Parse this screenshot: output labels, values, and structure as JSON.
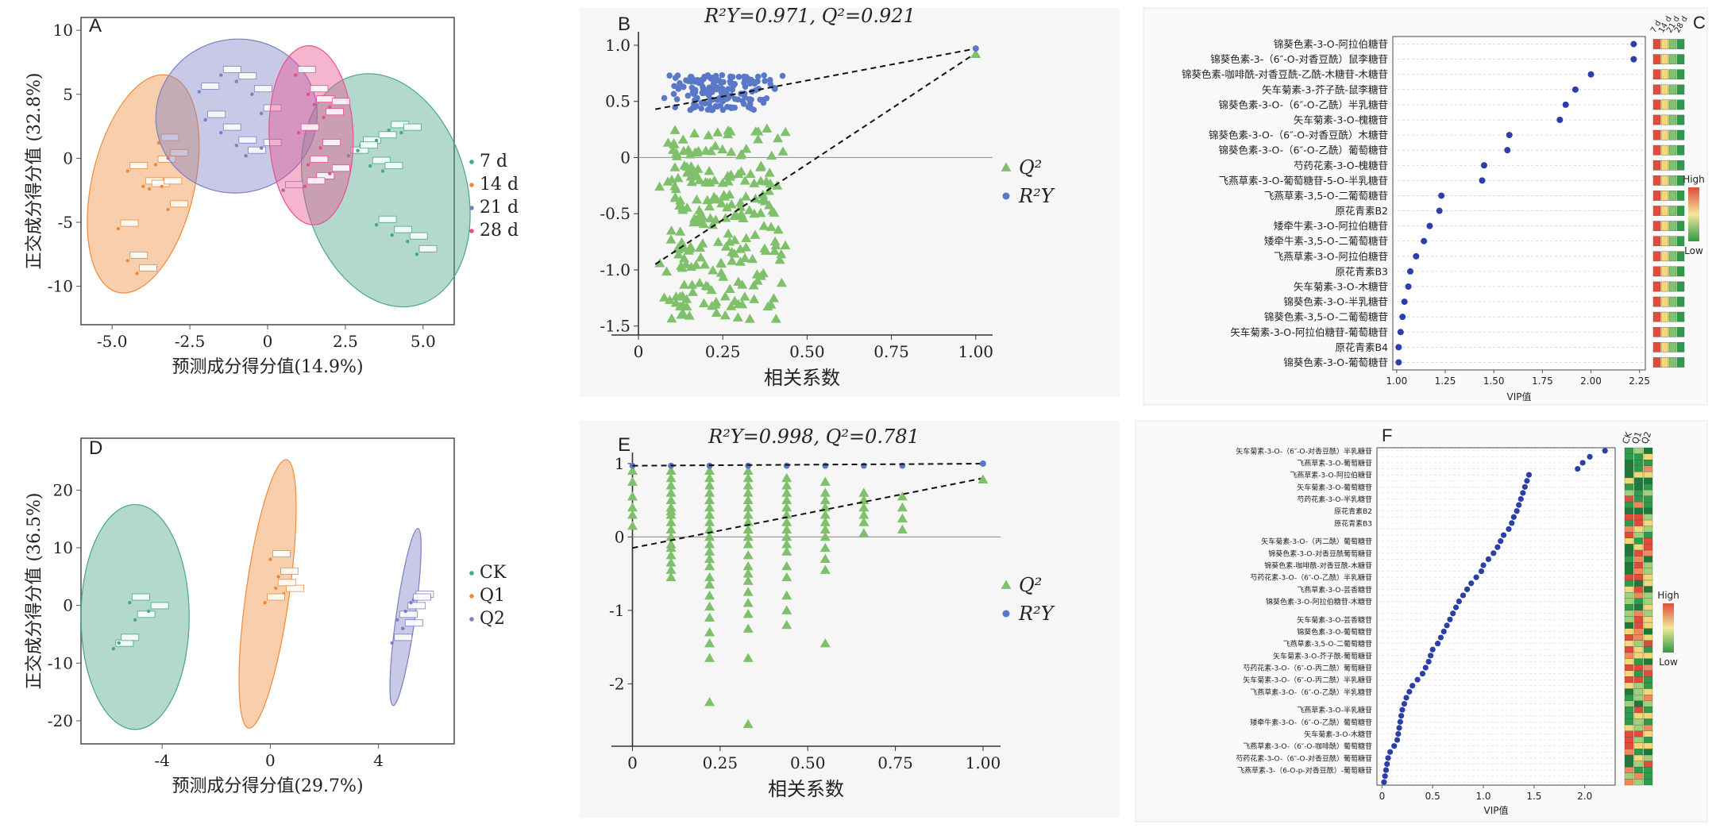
{
  "figure": {
    "background": "#ffffff"
  },
  "colors": {
    "g7": "#4aa58a",
    "g14": "#f08a3a",
    "g21": "#7b7fc4",
    "g28": "#ea4f8c",
    "ck": "#4aa58a",
    "q1": "#f08a3a",
    "q2": "#7b7fc4",
    "q2tri": "#7fc06a",
    "r2y": "#5a78c8",
    "vipdot": "#2a3fa8"
  },
  "chart_data": [
    {
      "panel": "A",
      "type": "scatter",
      "subtype": "opls-da-score",
      "xlabel": "预测成分得分值(14.9%)",
      "ylabel": "正交成分得分值 (32.8%)",
      "xlim": [
        -6.0,
        6.0
      ],
      "ylim": [
        -13,
        11
      ],
      "xticks": [
        -5.0,
        -2.5,
        0,
        2.5,
        5.0
      ],
      "xticklabels": [
        "-5.0",
        "-2.5",
        "0",
        "2.5",
        "5.0"
      ],
      "yticks": [
        10,
        5,
        0,
        -5,
        -10
      ],
      "yticklabels": [
        "10",
        "5",
        "0",
        "-5",
        "-10"
      ],
      "legend": [
        "7 d",
        "14 d",
        "21 d",
        "28 d"
      ],
      "series": [
        {
          "name": "7 d",
          "color": "g7",
          "points": [
            [
              2.6,
              0.2
            ],
            [
              3.0,
              1.0
            ],
            [
              3.5,
              1.4
            ],
            [
              3.9,
              2.2
            ],
            [
              4.3,
              2.0
            ],
            [
              3.3,
              -0.6
            ],
            [
              3.7,
              -1.0
            ],
            [
              3.5,
              -5.2
            ],
            [
              4.0,
              -6.0
            ],
            [
              4.5,
              -6.5
            ],
            [
              4.8,
              -7.5
            ],
            [
              2.9,
              0.6
            ]
          ],
          "ellipse": {
            "cx": 3.8,
            "cy": -2.5,
            "rx": 2.6,
            "ry": 9.3,
            "angle": -16
          }
        },
        {
          "name": "14 d",
          "color": "g14",
          "points": [
            [
              -4.8,
              -5.5
            ],
            [
              -4.5,
              -8.0
            ],
            [
              -4.2,
              -9.0
            ],
            [
              -4.5,
              -1.0
            ],
            [
              -4.0,
              -2.2
            ],
            [
              -3.8,
              -2.4
            ],
            [
              -3.4,
              -2.2
            ],
            [
              -3.6,
              -0.5
            ],
            [
              -3.2,
              0.0
            ],
            [
              -3.2,
              -4.0
            ],
            [
              -3.5,
              1.2
            ]
          ],
          "ellipse": {
            "cx": -4.0,
            "cy": -2.0,
            "rx": 1.65,
            "ry": 8.7,
            "angle": 13
          }
        },
        {
          "name": "21 d",
          "color": "g21",
          "points": [
            [
              -2.2,
              5.2
            ],
            [
              -1.5,
              6.5
            ],
            [
              -1.0,
              6.0
            ],
            [
              -0.5,
              5.0
            ],
            [
              -0.2,
              3.5
            ],
            [
              -2.0,
              3.0
            ],
            [
              -1.5,
              2.0
            ],
            [
              -1.0,
              1.0
            ],
            [
              -0.7,
              0.2
            ],
            [
              -0.2,
              0.8
            ],
            [
              0.5,
              -2.5
            ]
          ],
          "ellipse": {
            "cx": -1.0,
            "cy": 3.3,
            "rx": 2.6,
            "ry": 6.0,
            "angle": -12
          }
        },
        {
          "name": "28 d",
          "color": "g28",
          "points": [
            [
              0.9,
              6.5
            ],
            [
              1.3,
              5.0
            ],
            [
              1.5,
              4.2
            ],
            [
              1.8,
              3.2
            ],
            [
              1.7,
              0.8
            ],
            [
              1.0,
              2.0
            ],
            [
              1.3,
              -0.5
            ],
            [
              1.5,
              -1.8
            ],
            [
              2.0,
              -1.2
            ],
            [
              1.2,
              -2.2
            ],
            [
              2.0,
              4.0
            ]
          ],
          "ellipse": {
            "cx": 1.4,
            "cy": 1.8,
            "rx": 1.35,
            "ry": 7.0,
            "angle": -2
          }
        }
      ]
    },
    {
      "panel": "B",
      "type": "scatter",
      "subtype": "permutation-test",
      "title": "R²Y=0.971, Q²=0.921",
      "xlabel": "相关系数",
      "ylabel": "",
      "xlim": [
        -0.08,
        1.05
      ],
      "ylim": [
        -1.58,
        1.12
      ],
      "xticks": [
        0,
        0.25,
        0.5,
        0.75,
        1.0
      ],
      "xticklabels": [
        "0",
        "0.25",
        "0.50",
        "0.75",
        "1.00"
      ],
      "yticks": [
        1.0,
        0.5,
        0,
        -0.5,
        -1.0,
        -1.5
      ],
      "yticklabels": [
        "1.0",
        "0.5",
        "0",
        "-0.5",
        "-1.0",
        "-1.5"
      ],
      "legend": [
        "Q²",
        "R²Y"
      ],
      "r2y_point": [
        1.0,
        0.971
      ],
      "q2_point": [
        1.0,
        0.921
      ],
      "r2y_line": [
        [
          0.05,
          0.43
        ],
        [
          1.0,
          0.97
        ]
      ],
      "q2_line": [
        [
          0.05,
          -0.95
        ],
        [
          1.0,
          0.93
        ]
      ],
      "r2y_cloud": {
        "xmin": 0.05,
        "xmax": 0.45,
        "ymin": 0.42,
        "ymax": 0.74,
        "n": 160,
        "seed": 11
      },
      "q2_cloud": {
        "xmin": 0.05,
        "xmax": 0.5,
        "ymin": -1.45,
        "ymax": 0.3,
        "n": 230,
        "seed": 23
      }
    },
    {
      "panel": "C",
      "type": "scatter",
      "subtype": "vip-dotplot",
      "xlabel": "VIP值",
      "xlim": [
        0.98,
        2.28
      ],
      "xticks": [
        1.0,
        1.25,
        1.5,
        1.75,
        2.0,
        2.25
      ],
      "xticklabels": [
        "1.00",
        "1.25",
        "1.50",
        "1.75",
        "2.00",
        "2.25"
      ],
      "heat_headers": [
        "7 d",
        "14 d",
        "21 d",
        "28 d"
      ],
      "colorbar": {
        "high": "High",
        "low": "Low"
      },
      "items": [
        {
          "label": "锦葵色素-3-O-阿拉伯糖苷",
          "vip": 2.22,
          "heat": [
            "#e14b3a",
            "#f2d87a",
            "#7ec36e",
            "#2f9a4a"
          ]
        },
        {
          "label": "锦葵色素-3-（6″-O-对香豆酰）鼠李糖苷",
          "vip": 2.22,
          "heat": [
            "#e14b3a",
            "#f2d87a",
            "#7ec36e",
            "#2f9a4a"
          ]
        },
        {
          "label": "锦葵色素-咖啡酰-对香豆酰-乙酰-木糖苷-木糖苷",
          "vip": 2.0,
          "heat": [
            "#e14b3a",
            "#f2d87a",
            "#7ec36e",
            "#2f9a4a"
          ]
        },
        {
          "label": "矢车菊素-3-芥子酰-鼠李糖苷",
          "vip": 1.92,
          "heat": [
            "#e14b3a",
            "#f2d87a",
            "#7ec36e",
            "#2f9a4a"
          ]
        },
        {
          "label": "锦葵色素-3-O-（6″-O-乙酰）半乳糖苷",
          "vip": 1.87,
          "heat": [
            "#e14b3a",
            "#f2d87a",
            "#7ec36e",
            "#2f9a4a"
          ]
        },
        {
          "label": "矢车菊素-3-O-槐糖苷",
          "vip": 1.84,
          "heat": [
            "#e14b3a",
            "#f2d87a",
            "#7ec36e",
            "#2f9a4a"
          ]
        },
        {
          "label": "锦葵色素-3-O-（6″-O-对香豆酰）木糖苷",
          "vip": 1.58,
          "heat": [
            "#e14b3a",
            "#f2d87a",
            "#7ec36e",
            "#2f9a4a"
          ]
        },
        {
          "label": "锦葵色素-3-O-（6″-O-乙酰）葡萄糖苷",
          "vip": 1.57,
          "heat": [
            "#e14b3a",
            "#f2d87a",
            "#7ec36e",
            "#2f9a4a"
          ]
        },
        {
          "label": "芍药花素-3-O-槐糖苷",
          "vip": 1.45,
          "heat": [
            "#e14b3a",
            "#f2d87a",
            "#7ec36e",
            "#2f9a4a"
          ]
        },
        {
          "label": "飞燕草素-3-O-葡萄糖苷-5-O-半乳糖苷",
          "vip": 1.44,
          "heat": [
            "#e14b3a",
            "#f2d87a",
            "#7ec36e",
            "#2f9a4a"
          ]
        },
        {
          "label": "飞燕草素-3,5-O-二葡萄糖苷",
          "vip": 1.23,
          "heat": [
            "#e14b3a",
            "#f2d87a",
            "#7ec36e",
            "#2f9a4a"
          ]
        },
        {
          "label": "原花青素B2",
          "vip": 1.22,
          "heat": [
            "#e14b3a",
            "#f2d87a",
            "#7ec36e",
            "#2f9a4a"
          ]
        },
        {
          "label": "矮牵牛素-3-O-阿拉伯糖苷",
          "vip": 1.17,
          "heat": [
            "#e14b3a",
            "#f2d87a",
            "#7ec36e",
            "#2f9a4a"
          ]
        },
        {
          "label": "矮牵牛素-3,5-O-二葡萄糖苷",
          "vip": 1.14,
          "heat": [
            "#e14b3a",
            "#f2d87a",
            "#7ec36e",
            "#2f9a4a"
          ]
        },
        {
          "label": "飞燕草素-3-O-阿拉伯糖苷",
          "vip": 1.1,
          "heat": [
            "#e14b3a",
            "#f2d87a",
            "#7ec36e",
            "#2f9a4a"
          ]
        },
        {
          "label": "原花青素B3",
          "vip": 1.07,
          "heat": [
            "#e14b3a",
            "#f2d87a",
            "#7ec36e",
            "#2f9a4a"
          ]
        },
        {
          "label": "矢车菊素-3-O-木糖苷",
          "vip": 1.06,
          "heat": [
            "#e14b3a",
            "#f2d87a",
            "#7ec36e",
            "#2f9a4a"
          ]
        },
        {
          "label": "锦葵色素-3-O-半乳糖苷",
          "vip": 1.04,
          "heat": [
            "#e14b3a",
            "#f2d87a",
            "#7ec36e",
            "#2f9a4a"
          ]
        },
        {
          "label": "锦葵色素-3,5-O-二葡萄糖苷",
          "vip": 1.03,
          "heat": [
            "#e14b3a",
            "#f2d87a",
            "#7ec36e",
            "#2f9a4a"
          ]
        },
        {
          "label": "矢车菊素-3-O-阿拉伯糖苷-葡萄糖苷",
          "vip": 1.02,
          "heat": [
            "#e14b3a",
            "#f2d87a",
            "#7ec36e",
            "#2f9a4a"
          ]
        },
        {
          "label": "原花青素B4",
          "vip": 1.01,
          "heat": [
            "#e14b3a",
            "#f2d87a",
            "#7ec36e",
            "#2f9a4a"
          ]
        },
        {
          "label": "锦葵色素-3-O-葡萄糖苷",
          "vip": 1.01,
          "heat": [
            "#e14b3a",
            "#f2d87a",
            "#7ec36e",
            "#2f9a4a"
          ]
        }
      ]
    },
    {
      "panel": "D",
      "type": "scatter",
      "subtype": "opls-da-score",
      "xlabel": "预测成分得分值(29.7%)",
      "ylabel": "正交成分得分值 (36.5%)",
      "xlim": [
        -7.0,
        6.8
      ],
      "ylim": [
        -24,
        29
      ],
      "xticks": [
        -4,
        0,
        4
      ],
      "xticklabels": [
        "-4",
        "0",
        "4"
      ],
      "yticks": [
        20,
        10,
        0,
        -10,
        -20
      ],
      "yticklabels": [
        "20",
        "10",
        "0",
        "-10",
        "-20"
      ],
      "legend": [
        "CK",
        "Q1",
        "Q2"
      ],
      "series": [
        {
          "name": "CK",
          "color": "ck",
          "points": [
            [
              -5.2,
              0.5
            ],
            [
              -5.0,
              -2.5
            ],
            [
              -4.5,
              -1.0
            ],
            [
              -5.8,
              -7.5
            ],
            [
              -5.6,
              -6.5
            ]
          ],
          "ellipse": {
            "cx": -5.0,
            "cy": -2.0,
            "rx": 2.0,
            "ry": 19.5,
            "angle": 0
          }
        },
        {
          "name": "Q1",
          "color": "q1",
          "points": [
            [
              0.0,
              8.0
            ],
            [
              0.3,
              5.0
            ],
            [
              0.5,
              2.0
            ],
            [
              -0.2,
              0.5
            ],
            [
              0.2,
              3.0
            ]
          ],
          "ellipse": {
            "cx": -0.1,
            "cy": 2.0,
            "rx": 0.8,
            "ry": 23.5,
            "angle": 8
          }
        },
        {
          "name": "Q2",
          "color": "q2",
          "points": [
            [
              4.7,
              -2.5
            ],
            [
              5.0,
              -1.0
            ],
            [
              5.3,
              1.0
            ],
            [
              4.9,
              -4.0
            ],
            [
              4.5,
              -6.5
            ],
            [
              5.2,
              0.5
            ]
          ],
          "ellipse": {
            "cx": 5.0,
            "cy": -2.0,
            "rx": 0.35,
            "ry": 15.5,
            "angle": 8
          }
        }
      ]
    },
    {
      "panel": "E",
      "type": "scatter",
      "subtype": "permutation-test",
      "title": "R²Y=0.998, Q²=0.781",
      "xlabel": "相关系数",
      "ylabel": "",
      "xlim": [
        -0.06,
        1.05
      ],
      "ylim": [
        -2.85,
        1.15
      ],
      "xticks": [
        0,
        0.25,
        0.5,
        0.75,
        1.0
      ],
      "xticklabels": [
        "0",
        "0.25",
        "0.50",
        "0.75",
        "1.00"
      ],
      "yticks": [
        1,
        0,
        -1,
        -2
      ],
      "yticklabels": [
        "1",
        "0",
        "-1",
        "-2"
      ],
      "legend": [
        "Q²",
        "R²Y"
      ],
      "r2y_point": [
        1.0,
        0.998
      ],
      "q2_point": [
        1.0,
        0.781
      ],
      "r2y_line": [
        [
          0,
          0.97
        ],
        [
          1.0,
          0.998
        ]
      ],
      "q2_line": [
        [
          0,
          -0.15
        ],
        [
          1.0,
          0.8
        ]
      ],
      "columns": [
        {
          "x": 0.0,
          "q2": [
            0.9,
            0.75,
            0.55,
            0.4,
            0.3,
            0.15
          ],
          "n_r2": 1
        },
        {
          "x": 0.11,
          "q2": [
            0.9,
            0.8,
            0.7,
            0.6,
            0.5,
            0.4,
            0.35,
            0.3,
            0.2,
            0.1,
            0.0,
            -0.1,
            -0.15,
            -0.25,
            -0.35,
            -0.45,
            -0.55
          ],
          "n_r2": 2
        },
        {
          "x": 0.22,
          "q2": [
            0.9,
            0.8,
            0.7,
            0.6,
            0.5,
            0.4,
            0.3,
            0.2,
            0.1,
            0.0,
            -0.1,
            -0.2,
            -0.3,
            -0.4,
            -0.55,
            -0.65,
            -0.8,
            -0.95,
            -1.1,
            -1.3,
            -1.45,
            -1.65,
            -2.25
          ],
          "n_r2": 3
        },
        {
          "x": 0.33,
          "q2": [
            0.9,
            0.8,
            0.7,
            0.6,
            0.5,
            0.4,
            0.3,
            0.2,
            0.1,
            0.0,
            -0.1,
            -0.25,
            -0.4,
            -0.5,
            -0.6,
            -0.75,
            -0.9,
            -1.05,
            -1.25,
            -1.65,
            -2.55
          ],
          "n_r2": 3
        },
        {
          "x": 0.44,
          "q2": [
            0.8,
            0.7,
            0.6,
            0.5,
            0.4,
            0.3,
            0.2,
            0.1,
            0.0,
            -0.1,
            -0.2,
            -0.4,
            -0.55,
            -0.8,
            -1.0,
            -1.2
          ],
          "n_r2": 2
        },
        {
          "x": 0.55,
          "q2": [
            0.75,
            0.6,
            0.5,
            0.4,
            0.3,
            0.2,
            0.1,
            0.0,
            -0.15,
            -0.3,
            -0.45,
            -1.45
          ],
          "n_r2": 2
        },
        {
          "x": 0.66,
          "q2": [
            0.6,
            0.5,
            0.4,
            0.3,
            0.2,
            0.05
          ],
          "n_r2": 1
        },
        {
          "x": 0.77,
          "q2": [
            0.55,
            0.4,
            0.25,
            0.1
          ],
          "n_r2": 1
        }
      ]
    },
    {
      "panel": "F",
      "type": "scatter",
      "subtype": "vip-dotplot",
      "xlabel": "VIP值",
      "xlim": [
        -0.05,
        2.3
      ],
      "xticks": [
        0,
        0.5,
        1.0,
        1.5,
        2.0
      ],
      "xticklabels": [
        "0",
        "0.5",
        "1.0",
        "1.5",
        "2.0"
      ],
      "heat_headers": [
        "CK",
        "Q1",
        "Q2"
      ],
      "colorbar": {
        "high": "High",
        "low": "Low"
      },
      "n_rows": 56,
      "row_labels": [
        "矢车菊素-3-O-（6″-O-对香豆酰）半乳糖苷",
        "飞燕草素-3-O-葡萄糖苷",
        "飞燕草素-3-O-阿拉伯糖苷",
        "矢车菊素-3-O-葡萄糖苷",
        "芍药花素-3-O-半乳糖苷",
        "原花青素B2",
        "原花青素B3",
        "矢车菊素-3-O-（丙二酰）葡萄糖苷",
        "锦葵色素-3-O-对香豆酰葡萄糖苷",
        "锦葵色素-咖啡酰-对香豆酰-木糖苷",
        "芍药花素-3-O-（6″-O-乙酰）半乳糖苷",
        "飞燕草素-3-O-芸香糖苷",
        "锦葵色素-3-O-阿拉伯糖苷-木糖苷",
        "矢车菊素-3-O-芸香糖苷",
        "锦葵色素-3-O-葡萄糖苷",
        "飞燕草素-3,5-O-二葡萄糖苷",
        "矢车菊素-3-O-芥子酰-葡萄糖苷",
        "芍药花素-3-O-（6″-O-丙二酰）葡萄糖苷",
        "矢车菊素-3-O-（6″-O-丙二酰）半乳糖苷",
        "飞燕草素-3-O-（6″-O-乙酰）半乳糖苷",
        "飞燕草素-3-O-半乳糖苷",
        "矮牵牛素-3-O-（6″-O-乙酰）葡萄糖苷",
        "矢车菊素-3-O-木糖苷",
        "飞燕草素-3-O-（6″-O-咖啡酰）葡萄糖苷",
        "芍药花素-3-O-（6″-O-对香豆酰）葡萄糖苷",
        "飞燕草素-3-（6-O-p-对香豆酰）-葡萄糖苷"
      ],
      "vips": [
        2.2,
        2.05,
        1.98,
        1.93,
        1.45,
        1.43,
        1.41,
        1.39,
        1.37,
        1.35,
        1.33,
        1.3,
        1.28,
        1.25,
        1.2,
        1.17,
        1.14,
        1.1,
        1.05,
        1.0,
        0.98,
        0.93,
        0.88,
        0.84,
        0.8,
        0.76,
        0.73,
        0.7,
        0.67,
        0.64,
        0.61,
        0.58,
        0.55,
        0.5,
        0.48,
        0.46,
        0.43,
        0.4,
        0.35,
        0.3,
        0.27,
        0.24,
        0.22,
        0.2,
        0.19,
        0.18,
        0.17,
        0.16,
        0.15,
        0.12,
        0.08,
        0.06,
        0.05,
        0.04,
        0.03,
        0.02
      ],
      "heat_seed": 37
    }
  ]
}
